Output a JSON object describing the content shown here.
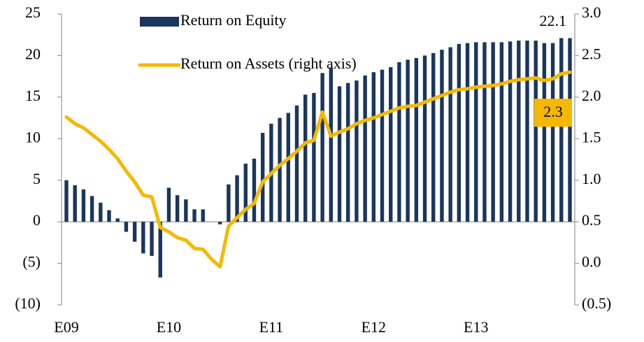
{
  "chart_data": {
    "type": "bar",
    "categories": [
      "E09",
      null,
      null,
      null,
      null,
      null,
      null,
      null,
      null,
      null,
      null,
      null,
      "E10",
      null,
      null,
      null,
      null,
      null,
      null,
      null,
      null,
      null,
      null,
      null,
      "E11",
      null,
      null,
      null,
      null,
      null,
      null,
      null,
      null,
      null,
      null,
      null,
      "E12",
      null,
      null,
      null,
      null,
      null,
      null,
      null,
      null,
      null,
      null,
      null,
      "E13",
      null,
      null,
      null,
      null,
      null,
      null,
      null,
      null,
      null,
      null,
      null
    ],
    "series": [
      {
        "name": "Return on Equity",
        "type": "bar",
        "color": "#1b365d",
        "values": [
          5.0,
          4.4,
          3.9,
          3.1,
          2.3,
          1.4,
          0.4,
          -1.2,
          -2.4,
          -3.8,
          -4.1,
          -6.7,
          4.1,
          3.2,
          2.7,
          1.5,
          1.5,
          0,
          -0.3,
          4.5,
          5.6,
          7.0,
          7.6,
          10.7,
          11.8,
          12.5,
          13.1,
          14.0,
          15.3,
          15.5,
          17.9,
          18.5,
          16.3,
          16.7,
          17.0,
          17.6,
          18.0,
          18.3,
          18.6,
          19.2,
          19.5,
          19.7,
          20.0,
          20.3,
          20.7,
          21.0,
          21.4,
          21.5,
          21.6,
          21.6,
          21.6,
          21.6,
          21.7,
          21.8,
          21.8,
          21.8,
          21.5,
          21.5,
          22.1,
          22.1
        ]
      },
      {
        "name": "Return on Assets (right axis)",
        "type": "line",
        "axis": "y2",
        "color": "#f5b800",
        "values": [
          1.76,
          1.68,
          1.63,
          1.55,
          1.47,
          1.37,
          1.26,
          1.11,
          0.98,
          0.82,
          0.8,
          0.43,
          0.38,
          0.31,
          0.28,
          0.18,
          0.17,
          0.05,
          -0.04,
          0.45,
          0.55,
          0.65,
          0.72,
          0.98,
          1.08,
          1.18,
          1.26,
          1.35,
          1.45,
          1.48,
          1.82,
          1.53,
          1.58,
          1.62,
          1.68,
          1.72,
          1.75,
          1.79,
          1.83,
          1.87,
          1.89,
          1.9,
          1.94,
          1.98,
          2.02,
          2.06,
          2.09,
          2.1,
          2.12,
          2.13,
          2.14,
          2.16,
          2.19,
          2.21,
          2.22,
          2.23,
          2.2,
          2.22,
          2.28,
          2.3
        ]
      }
    ],
    "ylim": [
      -10,
      25
    ],
    "yticks": [
      {
        "value": -10,
        "label": "(10)"
      },
      {
        "value": -5,
        "label": "(5)"
      },
      0,
      5,
      10,
      15,
      20,
      25
    ],
    "y2lim": [
      -0.5,
      3
    ],
    "y2ticks": [
      {
        "value": -0.5,
        "label": "(0.5)"
      },
      {
        "value": 0,
        "label": "0.0"
      },
      0.5,
      {
        "value": 1,
        "label": "1.0"
      },
      1.5,
      {
        "value": 2,
        "label": "2.0"
      },
      2.5,
      {
        "value": 3,
        "label": "3.0"
      }
    ],
    "legend": "top"
  }
}
